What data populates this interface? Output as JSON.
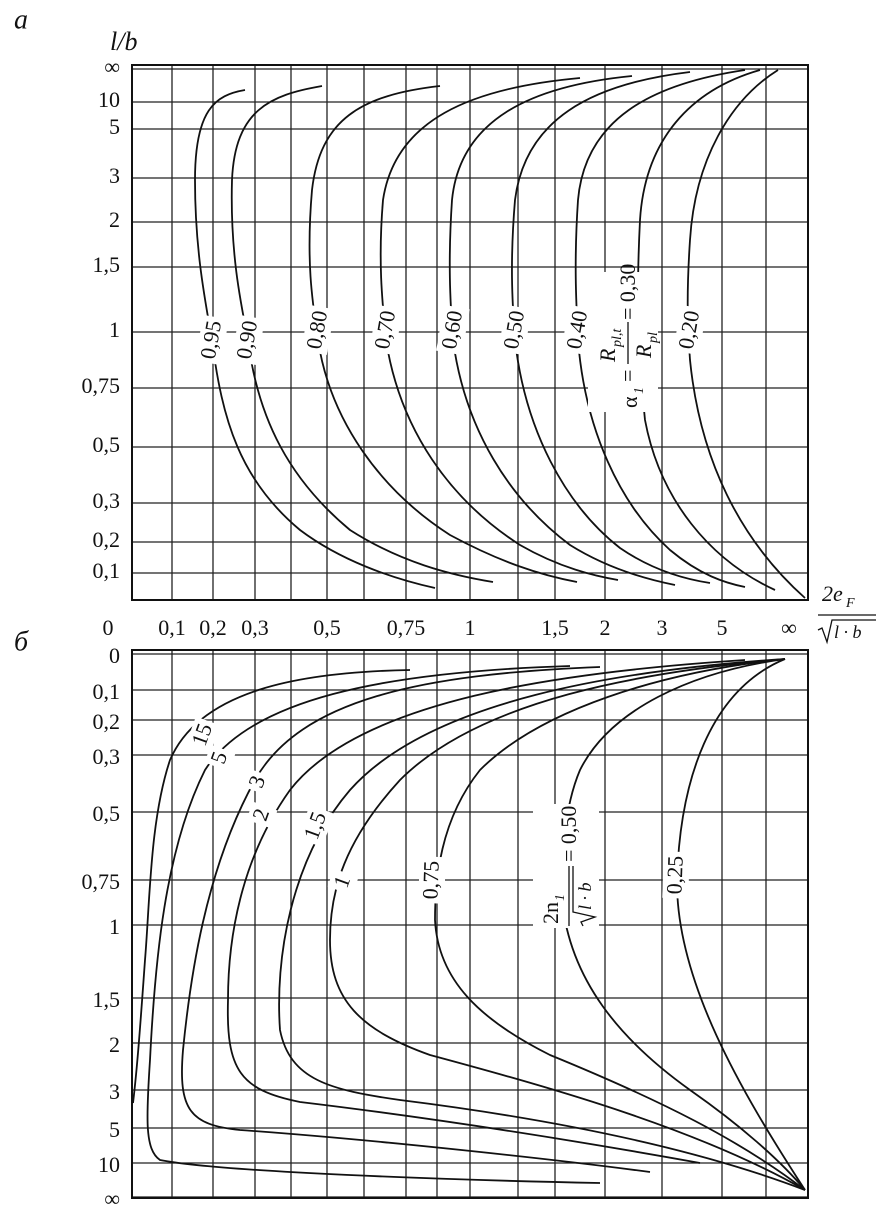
{
  "panel_a": {
    "label": "а",
    "y_axis_title": "l/b",
    "y_labels": [
      "∞",
      "10",
      "5",
      "3",
      "2",
      "1,5",
      "1",
      "0,75",
      "0,5",
      "0,3",
      "0,2",
      "0,1"
    ],
    "curve_labels": [
      "0,95",
      "0,90",
      "0,80",
      "0,70",
      "0,60",
      "0,50",
      "0,40",
      "0,20"
    ],
    "formula": {
      "lhs": "α",
      "lhs_sub": "1",
      "eq": "=",
      "num": "R",
      "num_sub": "pl,t",
      "den": "R",
      "den_sub": "pl",
      "value": "= 0,30"
    }
  },
  "x_axis": {
    "labels": [
      "0",
      "0,1",
      "0,2",
      "0,3",
      "0,5",
      "0,75",
      "1",
      "1,5",
      "2",
      "3",
      "5",
      "∞"
    ],
    "title": {
      "num": "2e",
      "num_sub": "F",
      "den": "l · b"
    }
  },
  "panel_b": {
    "label": "б",
    "y_labels": [
      "0",
      "0,1",
      "0,2",
      "0,3",
      "0,5",
      "0,75",
      "1",
      "1,5",
      "2",
      "3",
      "5",
      "10",
      "∞"
    ],
    "curve_labels": [
      "15",
      "5",
      "3",
      "2",
      "1,5",
      "1",
      "0,75",
      "0,25"
    ],
    "formula": {
      "num": "2n",
      "num_sub": "1",
      "den": "l · b",
      "value": "= 0,50"
    }
  }
}
